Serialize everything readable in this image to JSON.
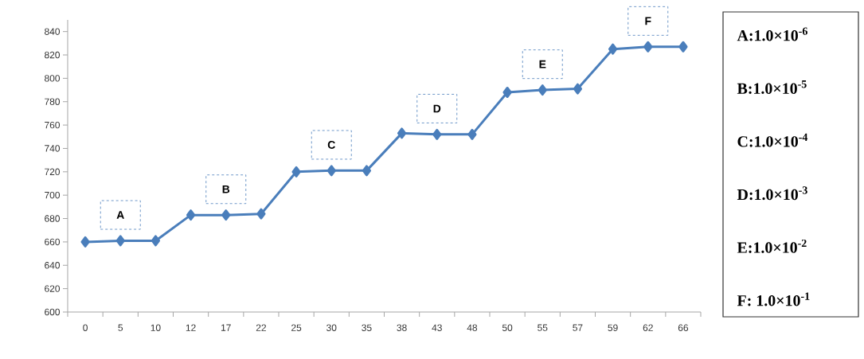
{
  "chart_data": {
    "type": "line",
    "categories": [
      "0",
      "5",
      "10",
      "12",
      "17",
      "22",
      "25",
      "30",
      "35",
      "38",
      "43",
      "48",
      "50",
      "55",
      "57",
      "59",
      "62",
      "66"
    ],
    "series": [
      {
        "color": "#4a7ebb",
        "values": [
          660,
          661,
          661,
          683,
          683,
          684,
          720,
          721,
          721,
          753,
          752,
          752,
          788,
          790,
          791,
          825,
          827,
          827
        ]
      }
    ],
    "ylim": [
      600,
      850
    ],
    "yticks": [
      600,
      620,
      640,
      660,
      680,
      700,
      720,
      740,
      760,
      780,
      800,
      820,
      840
    ],
    "marker": "diamond",
    "line_style": "solid",
    "annotations": [
      "A",
      "B",
      "C",
      "D",
      "E",
      "F",
      "A:1.0×10$^{-6}$",
      "B:1.0×10$^{-5}$",
      "C:1.0×10$^{-4}$",
      "D:1.0×10$^{-3}$",
      "E:1.0×10$^{-2}$",
      "F: 1.0×10$^{-1}$"
    ]
  }
}
